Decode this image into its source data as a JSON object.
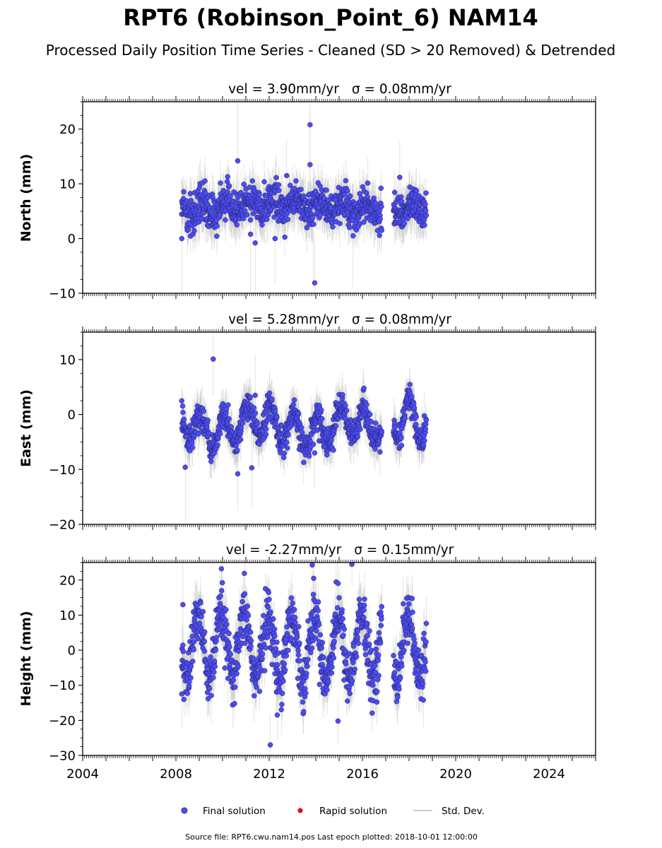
{
  "chart_data": {
    "type": "scatter",
    "title": "RPT6 (Robinson_Point_6) NAM14",
    "subtitle": "Processed Daily Position Time Series - Cleaned (SD > 20 Removed) & Detrended",
    "xlim": [
      2004,
      2026
    ],
    "x_ticks": [
      "2004",
      "2008",
      "2012",
      "2016",
      "2020",
      "2024"
    ],
    "data_span": [
      "2008-04-01",
      "2018-10-01"
    ],
    "gaps": [
      [
        "2016-11-01",
        "2017-05-01"
      ]
    ],
    "grid": false,
    "legend_position": "bottom-center",
    "panels": [
      {
        "ylabel": "North (mm)",
        "vel_label": "vel = 3.90mm/yr",
        "sigma_label": "σ = 0.08mm/yr",
        "ylim": [
          -10,
          25
        ],
        "y_ticks": [
          "−10",
          "0",
          "10",
          "20"
        ],
        "outliers": [
          {
            "x": 2008.25,
            "y": 0
          },
          {
            "x": 2010.65,
            "y": 14.2
          },
          {
            "x": 2011.2,
            "y": 0.8
          },
          {
            "x": 2011.4,
            "y": -0.8
          },
          {
            "x": 2012.25,
            "y": 0
          },
          {
            "x": 2013.75,
            "y": 20.8
          },
          {
            "x": 2013.75,
            "y": 13.5
          },
          {
            "x": 2013.9,
            "y": 2.6
          },
          {
            "x": 2013.95,
            "y": -8.1
          },
          {
            "x": 2015.6,
            "y": 0.5
          },
          {
            "x": 2012.75,
            "y": 11.5
          },
          {
            "x": 2017.6,
            "y": 11.2
          }
        ]
      },
      {
        "ylabel": "East (mm)",
        "vel_label": "vel = 5.28mm/yr",
        "sigma_label": "σ = 0.08mm/yr",
        "ylim": [
          -20,
          15
        ],
        "y_ticks": [
          "−20",
          "−10",
          "0",
          "10"
        ],
        "outliers": [
          {
            "x": 2009.6,
            "y": 10.1
          },
          {
            "x": 2008.4,
            "y": -9.6
          },
          {
            "x": 2010.65,
            "y": -10.8
          },
          {
            "x": 2011.25,
            "y": -9.7
          },
          {
            "x": 2011.4,
            "y": 3.5
          },
          {
            "x": 2013.95,
            "y": -7.0
          }
        ]
      },
      {
        "ylabel": "Height (mm)",
        "vel_label": "vel = -2.27mm/yr",
        "sigma_label": "σ = 0.15mm/yr",
        "ylim": [
          -30,
          25
        ],
        "y_ticks": [
          "−30",
          "−20",
          "−10",
          "0",
          "10",
          "20"
        ],
        "outliers": [
          {
            "x": 2008.3,
            "y": 13
          },
          {
            "x": 2008.25,
            "y": -12.5
          },
          {
            "x": 2012.05,
            "y": -27
          },
          {
            "x": 2012.35,
            "y": -18.5
          },
          {
            "x": 2014.95,
            "y": -20.2
          },
          {
            "x": 2013.85,
            "y": 24.3
          },
          {
            "x": 2015.55,
            "y": 24.5
          },
          {
            "x": 2009.95,
            "y": 23.2
          }
        ]
      }
    ]
  },
  "legend": {
    "final": "Final solution",
    "rapid": "Rapid solution",
    "std": "Std. Dev."
  },
  "footer": "Source file: RPT6.cwu.nam14.pos  Last epoch plotted: 2018-10-01 12:00:00",
  "colors": {
    "final_marker": "#4c4cf5",
    "marker_edge": "#1a1a40",
    "rapid_marker": "#e0101a",
    "std_line": "#bbbbbb"
  }
}
